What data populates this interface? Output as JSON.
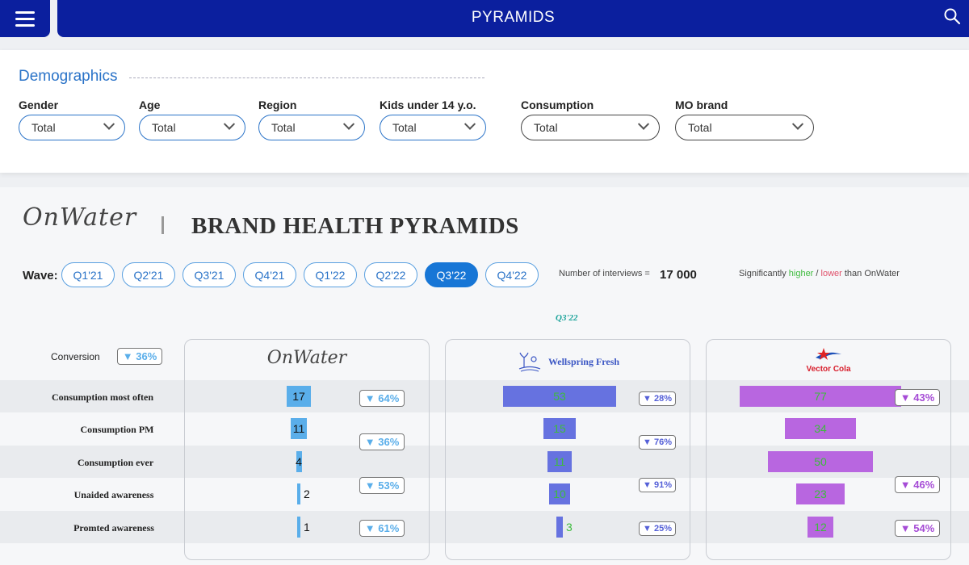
{
  "header": {
    "title": "PYRAMIDS",
    "menu_icon": "hamburger-menu-icon",
    "search_icon": "search-icon"
  },
  "demographics": {
    "title": "Demographics",
    "filters": [
      {
        "label": "Gender",
        "value": "Total"
      },
      {
        "label": "Age",
        "value": "Total"
      },
      {
        "label": "Region",
        "value": "Total"
      },
      {
        "label": "Kids under 14 y.o.",
        "value": "Total"
      },
      {
        "label": "Consumption",
        "value": "Total"
      },
      {
        "label": "MO brand",
        "value": "Total"
      }
    ]
  },
  "section": {
    "brand_logo": "OnWater",
    "title": "BRAND HEALTH PYRAMIDS"
  },
  "wave": {
    "label": "Wave:",
    "options": [
      "Q1'21",
      "Q2'21",
      "Q3'21",
      "Q4'21",
      "Q1'22",
      "Q2'22",
      "Q3'22",
      "Q4'22"
    ],
    "selected": "Q3'22",
    "current_label": "Q3'22"
  },
  "interviews": {
    "label": "Number of interviews =",
    "value": "17 000"
  },
  "significance": {
    "prefix": "Significantly ",
    "higher": "higher",
    "slash": " / ",
    "lower": "lower",
    "suffix": " than OnWater"
  },
  "conversion": {
    "label": "Conversion",
    "badge": "▼ 36%"
  },
  "rows": [
    "Consumption most often",
    "Consumption PM",
    "Consumption ever",
    "Unaided awareness",
    "Promted awareness"
  ],
  "brands": [
    {
      "name": "OnWater",
      "color": "#5aaeea",
      "values": [
        17,
        11,
        4,
        2,
        1
      ],
      "value_labels": [
        "17",
        "11",
        "4",
        "2",
        "1"
      ],
      "badges": [
        "▼ 64%",
        "▼ 36%",
        "▼ 53%",
        "▼ 61%"
      ]
    },
    {
      "name": "Wellspring Fresh",
      "color": "#6672e0",
      "values": [
        53,
        15,
        11,
        10,
        3
      ],
      "value_labels": [
        "53",
        "15",
        "11",
        "10",
        "3"
      ],
      "badges": [
        "▼ 28%",
        "▼ 76%",
        "▼ 91%",
        "▼ 25%"
      ]
    },
    {
      "name": "Vector Cola",
      "color": "#b866e0",
      "values": [
        77,
        34,
        50,
        23,
        12
      ],
      "value_labels": [
        "77",
        "34",
        "50",
        "23",
        "12"
      ],
      "badges": [
        "▼ 43%",
        "▼ 46%",
        "▼ 54%"
      ]
    }
  ],
  "colors": {
    "primary": "#0b1f9e",
    "accent": "#1776d6",
    "higher": "#3dbb3d",
    "lower": "#e0506a"
  }
}
